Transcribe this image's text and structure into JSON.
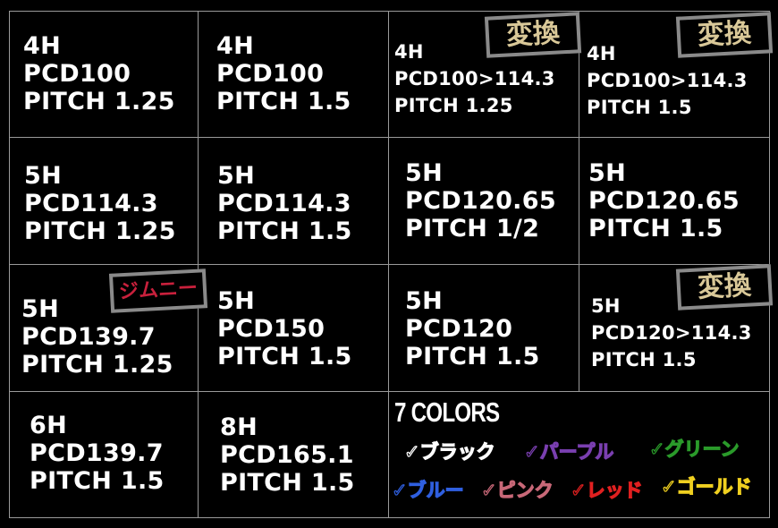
{
  "cells": [
    {
      "lines": [
        "4H",
        "PCD100",
        "PITCH 1.25"
      ]
    },
    {
      "lines": [
        "4H",
        "PCD100",
        "PITCH 1.5"
      ]
    },
    {
      "lines": [
        "4H",
        "PCD100>114.3",
        "PITCH 1.25"
      ],
      "badge": "変換"
    },
    {
      "lines": [
        "4H",
        "PCD100>114.3",
        "PITCH 1.5"
      ],
      "badge": "変換"
    },
    {
      "lines": [
        "5H",
        "PCD114.3",
        "PITCH 1.25"
      ]
    },
    {
      "lines": [
        "5H",
        "PCD114.3",
        "PITCH 1.5"
      ]
    },
    {
      "lines": [
        "5H",
        "PCD120.65",
        "PITCH 1/2"
      ]
    },
    {
      "lines": [
        "5H",
        "PCD120.65",
        "PITCH 1.5"
      ]
    },
    {
      "lines": [
        "5H",
        "PCD139.7",
        "PITCH 1.25"
      ],
      "badge": "ジムニー"
    },
    {
      "lines": [
        "5H",
        "PCD150",
        "PITCH 1.5"
      ]
    },
    {
      "lines": [
        "5H",
        "PCD120",
        "PITCH 1.5"
      ]
    },
    {
      "lines": [
        "5H",
        "PCD120>114.3",
        "PITCH 1.5"
      ],
      "badge": "変換"
    },
    {
      "lines": [
        "6H",
        "PCD139.7",
        "PITCH 1.5"
      ]
    },
    {
      "lines": [
        "8H",
        "PCD165.1",
        "PITCH 1.5"
      ]
    }
  ],
  "colors_section": {
    "title": "7 COLORS",
    "items": [
      {
        "label": "✓ブラック",
        "color": "#ffffff"
      },
      {
        "label": "✓パープル",
        "color": "#7a3fb0"
      },
      {
        "label": "✓グリーン",
        "color": "#2a9a2a"
      },
      {
        "label": "✓ブルー",
        "color": "#2f5fe0"
      },
      {
        "label": "✓ピンク",
        "color": "#c86878"
      },
      {
        "label": "✓レッド",
        "color": "#e02020"
      },
      {
        "label": "✓ゴールド",
        "color": "#f0d020"
      }
    ]
  },
  "theme": {
    "badge_text_gold": "#d9c898",
    "badge_text_red": "#c8203c",
    "grid_line": "#9a9a9a"
  }
}
